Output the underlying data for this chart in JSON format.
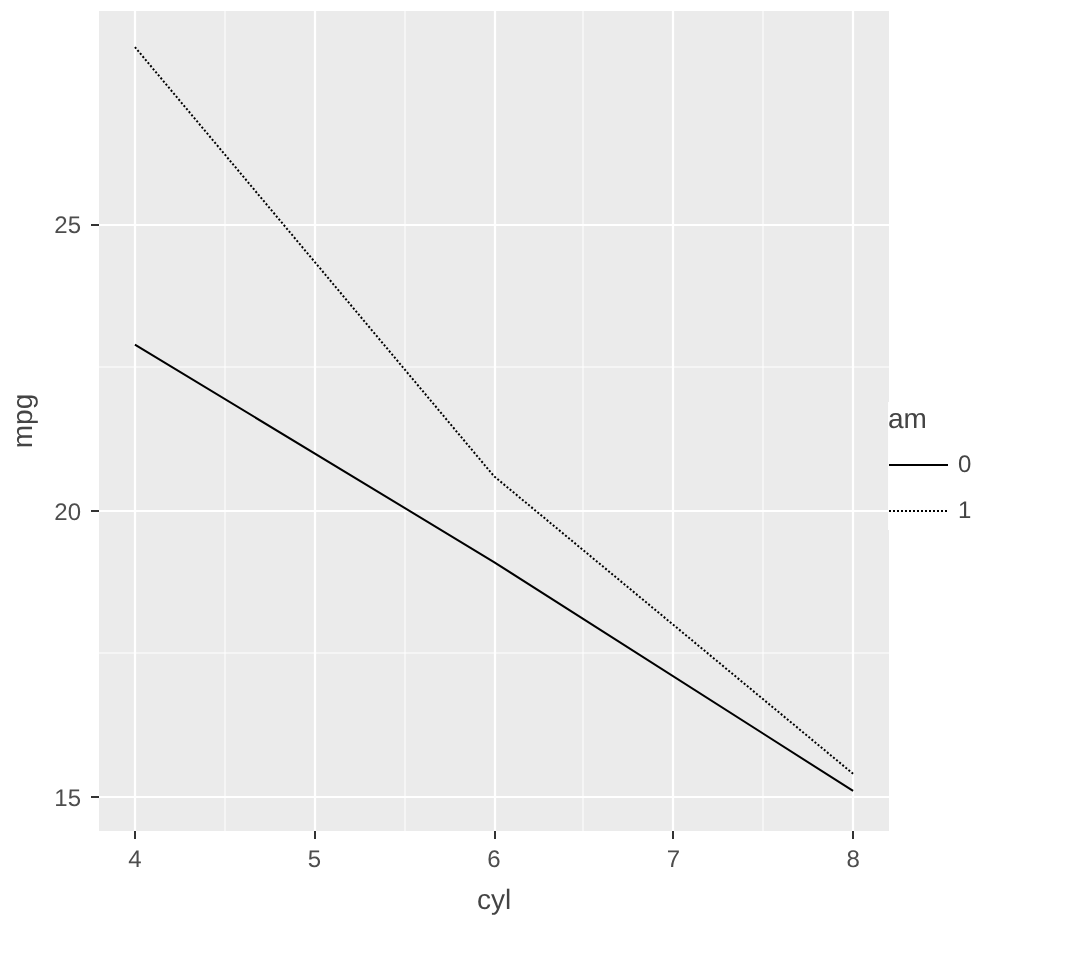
{
  "chart_data": {
    "type": "line",
    "xlabel": "cyl",
    "ylabel": "mpg",
    "legend_title": "am",
    "x": [
      4,
      6,
      8
    ],
    "series": [
      {
        "name": "0",
        "color": "#000000",
        "line_style": "solid",
        "values": [
          22.9,
          19.1,
          15.1
        ]
      },
      {
        "name": "1",
        "color": "#000000",
        "line_style": "dotted",
        "values": [
          28.1,
          20.6,
          15.4
        ]
      }
    ],
    "xlim": [
      3.8,
      8.2
    ],
    "xticks": [
      4,
      5,
      6,
      7,
      8
    ],
    "ylim": [
      14.4,
      28.73
    ],
    "yticks": [
      15,
      20,
      25
    ],
    "grid": true,
    "legend": "right"
  }
}
